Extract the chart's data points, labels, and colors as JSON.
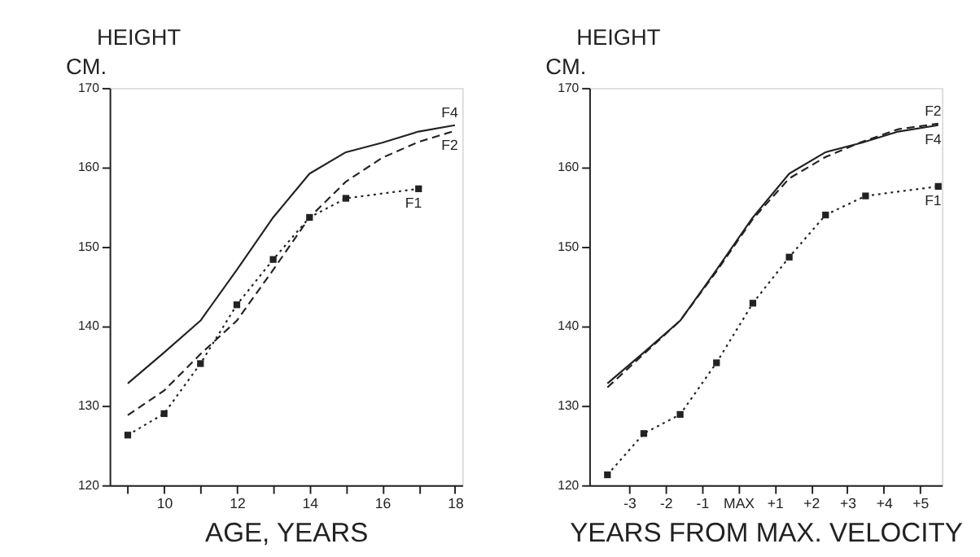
{
  "chart_data": [
    {
      "type": "line",
      "title": "HEIGHT",
      "ylabel": "CM.",
      "xlabel": "AGE, YEARS",
      "xlim": [
        8.5,
        18.2
      ],
      "xticks": [
        {
          "value": 9,
          "label": null
        },
        10,
        {
          "value": 11,
          "label": null
        },
        12,
        {
          "value": 13,
          "label": null
        },
        14,
        {
          "value": 15,
          "label": null
        },
        16,
        {
          "value": 17,
          "label": null
        },
        18
      ],
      "ylim": [
        120,
        170
      ],
      "yticks": [
        120,
        130,
        140,
        150,
        160,
        170
      ],
      "grid": false,
      "series": [
        {
          "name": "F4",
          "color": "#222222",
          "line_style": "solid",
          "marker": "none",
          "x": [
            9,
            10,
            11,
            12,
            13,
            14,
            15,
            16,
            17,
            18
          ],
          "values": [
            132.8,
            136.7,
            140.7,
            147.1,
            153.7,
            159.2,
            161.9,
            163.1,
            164.5,
            165.3
          ]
        },
        {
          "name": "F2",
          "color": "#222222",
          "line_style": "dashed",
          "marker": "none",
          "x": [
            9,
            10,
            11,
            12,
            13,
            14,
            15,
            16,
            17,
            18
          ],
          "values": [
            128.8,
            131.9,
            136.5,
            140.7,
            147.1,
            153.7,
            158.2,
            161.2,
            163.2,
            164.6
          ]
        },
        {
          "name": "F1",
          "color": "#222222",
          "line_style": "dotted",
          "marker": "square",
          "x": [
            9,
            10,
            11,
            12,
            13,
            14,
            15,
            17
          ],
          "values": [
            126.3,
            129.0,
            135.3,
            142.7,
            148.4,
            153.7,
            156.1,
            157.3
          ]
        }
      ]
    },
    {
      "type": "line",
      "title": "HEIGHT",
      "ylabel": "CM.",
      "xlabel": "YEARS FROM MAX. VELOCITY",
      "xlim": [
        -4.1,
        5.6
      ],
      "xticks": [
        {
          "value": -3,
          "label": "-3"
        },
        {
          "value": -2,
          "label": "-2"
        },
        {
          "value": -1,
          "label": "-1"
        },
        {
          "value": 0,
          "label": "MAX"
        },
        {
          "value": 1,
          "label": "+1"
        },
        {
          "value": 2,
          "label": "+2"
        },
        {
          "value": 3,
          "label": "+3"
        },
        {
          "value": 4,
          "label": "+4"
        },
        {
          "value": 5,
          "label": "+5"
        }
      ],
      "ylim": [
        120,
        170
      ],
      "yticks": [
        120,
        130,
        140,
        150,
        160,
        170
      ],
      "grid": false,
      "series": [
        {
          "name": "F4",
          "color": "#222222",
          "line_style": "solid",
          "marker": "none",
          "x": [
            -3.6,
            -2.6,
            -1.6,
            -0.6,
            0.4,
            1.4,
            2.4,
            3.4,
            4.4,
            5.5
          ],
          "values": [
            132.8,
            136.7,
            140.7,
            147.1,
            153.7,
            159.2,
            161.9,
            163.1,
            164.5,
            165.3
          ]
        },
        {
          "name": "F2",
          "color": "#222222",
          "line_style": "dashed",
          "marker": "none",
          "x": [
            -3.6,
            -2.6,
            -1.6,
            -0.6,
            0.4,
            1.4,
            2.4,
            3.4,
            4.4,
            5.5
          ],
          "values": [
            132.3,
            136.5,
            140.7,
            146.9,
            153.5,
            158.6,
            161.3,
            163.2,
            164.8,
            165.5
          ]
        },
        {
          "name": "F1",
          "color": "#222222",
          "line_style": "dotted",
          "marker": "square",
          "x": [
            -3.6,
            -2.6,
            -1.6,
            -0.6,
            0.4,
            1.4,
            2.4,
            3.5,
            5.5
          ],
          "values": [
            121.3,
            126.5,
            128.9,
            135.4,
            142.9,
            148.7,
            154.0,
            156.4,
            157.6
          ]
        }
      ]
    }
  ]
}
